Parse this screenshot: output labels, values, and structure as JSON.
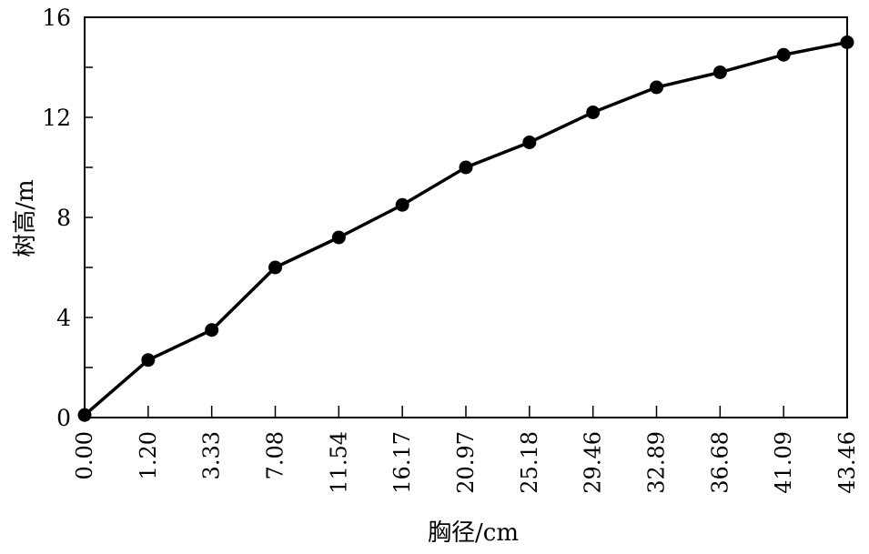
{
  "chart_data": {
    "type": "line",
    "title": "",
    "xlabel": "胸径/cm",
    "ylabel": "树高/m",
    "categories": [
      "0.00",
      "1.20",
      "3.33",
      "7.08",
      "11.54",
      "16.17",
      "20.97",
      "25.18",
      "29.46",
      "32.89",
      "36.68",
      "41.09",
      "43.46"
    ],
    "series": [
      {
        "values": [
          0.1,
          2.3,
          3.5,
          6.0,
          7.2,
          8.5,
          10.0,
          11.0,
          12.2,
          13.2,
          13.8,
          14.5,
          15.0
        ]
      }
    ],
    "ylim": [
      0,
      16
    ],
    "yticks": [
      "0",
      "4",
      "8",
      "12",
      "16"
    ],
    "yminor_step": 2,
    "grid": false,
    "colors": {
      "line": "#000000",
      "marker": "#000000"
    }
  }
}
